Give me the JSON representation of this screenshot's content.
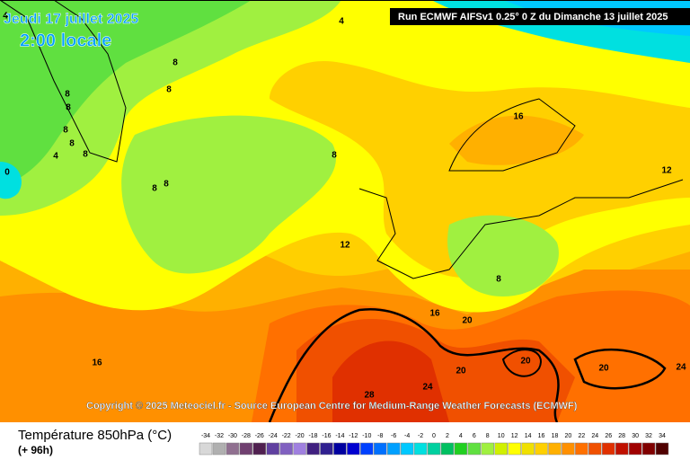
{
  "header": {
    "date": "Jeudi 17 juillet 2025",
    "time": "2:00 locale",
    "run": "Run ECMWF AIFSv1 0.25° 0 Z du Dimanche 13 juillet 2025"
  },
  "copyright": "Copyright © 2025 Meteociel.fr - Source European Centre for Medium-Range Weather Forecasts (ECMWF)",
  "legend": {
    "title": "Température 850hPa (°C)",
    "subtitle": "(+ 96h)",
    "scale": [
      -34,
      -32,
      -30,
      -28,
      -26,
      -24,
      -22,
      -20,
      -18,
      -16,
      -14,
      -12,
      -10,
      -8,
      -6,
      -4,
      -2,
      0,
      2,
      4,
      6,
      8,
      10,
      12,
      14,
      16,
      18,
      20,
      22,
      24,
      26,
      28,
      30,
      32,
      34
    ],
    "colors": [
      "#d8d8d8",
      "#b0b0b0",
      "#907090",
      "#704070",
      "#502050",
      "#6040a0",
      "#8060c0",
      "#a080e0",
      "#402080",
      "#302090",
      "#0000a0",
      "#0000d0",
      "#0040ff",
      "#0070ff",
      "#00a0ff",
      "#00c8ff",
      "#00e0e0",
      "#00d0a0",
      "#00c060",
      "#20d020",
      "#60e040",
      "#a0f040",
      "#d0f000",
      "#ffff00",
      "#f0e000",
      "#ffd000",
      "#ffb000",
      "#ff9000",
      "#ff7000",
      "#f05000",
      "#e03000",
      "#c01000",
      "#a00000",
      "#800000",
      "#500000"
    ]
  },
  "contour_labels": [
    4,
    4,
    8,
    8,
    8,
    8,
    8,
    8,
    8,
    4,
    0,
    8,
    8,
    8,
    16,
    12,
    12,
    8,
    16,
    20,
    16,
    20,
    20,
    20,
    24,
    28,
    24
  ]
}
